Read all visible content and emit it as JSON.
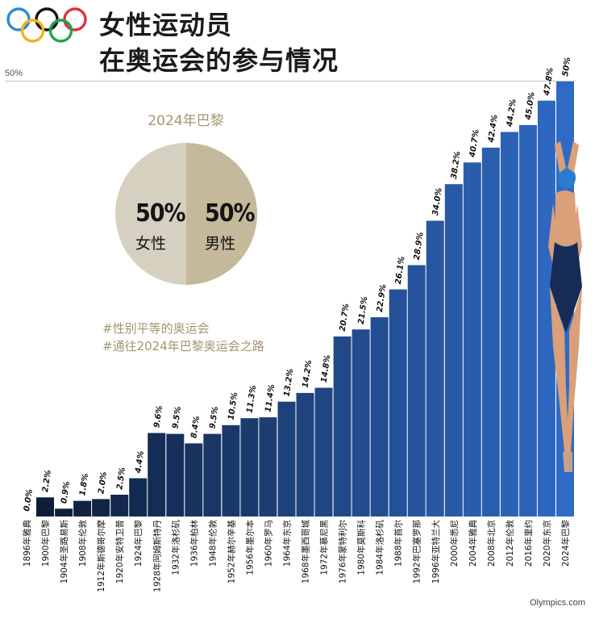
{
  "header": {
    "title_line1": "女性运动员",
    "title_line2": "在奥运会的参与情况",
    "reference_label": "50%"
  },
  "pie": {
    "title": "2024年巴黎",
    "female_pct": "50%",
    "female_label": "女性",
    "male_pct": "50%",
    "male_label": "男性",
    "colors": {
      "female": "#d6d0c0",
      "male": "#c4b99b"
    }
  },
  "hashtags": {
    "tag1": "#性别平等的奥运会",
    "tag2": "#通往2024年巴黎奥运会之路"
  },
  "source": "Olympics.com",
  "colors": {
    "accent_gold": "#a29670",
    "bar_dark": "#0d1a33",
    "bar_light": "#2f6ac4"
  },
  "chart_data": {
    "type": "bar",
    "categories": [
      "1896年雅典",
      "1900年巴黎",
      "1904年圣路易斯",
      "1908年伦敦",
      "1912年斯德哥尔摩",
      "1920年安特卫普",
      "1924年巴黎",
      "1928年阿姆斯特丹",
      "1932年洛杉矶",
      "1936年柏林",
      "1948年伦敦",
      "1952年赫尔辛基",
      "1956年墨尔本",
      "1960年罗马",
      "1964年东京",
      "1968年墨西哥城",
      "1972年慕尼黑",
      "1976年蒙特利尔",
      "1980年莫斯科",
      "1984年洛杉矶",
      "1988年首尔",
      "1992年巴塞罗那",
      "1996年亚特兰大",
      "2000年悉尼",
      "2004年雅典",
      "2008年北京",
      "2012年伦敦",
      "2016年里约",
      "2020年东京",
      "2024年巴黎"
    ],
    "values": [
      0.0,
      2.2,
      0.9,
      1.8,
      2.0,
      2.5,
      4.4,
      9.6,
      9.5,
      8.4,
      9.5,
      10.5,
      11.3,
      11.4,
      13.2,
      14.2,
      14.8,
      20.7,
      21.5,
      22.9,
      26.1,
      28.9,
      34.0,
      38.2,
      40.7,
      42.4,
      44.2,
      45.0,
      47.8,
      50
    ],
    "value_labels": [
      "0.0%",
      "2.2%",
      "0.9%",
      "1.8%",
      "2.0%",
      "2.5%",
      "4.4%",
      "9.6%",
      "9.5%",
      "8.4%",
      "9.5%",
      "10.5%",
      "11.3%",
      "11.4%",
      "13.2%",
      "14.2%",
      "14.8%",
      "20.7%",
      "21.5%",
      "22.9%",
      "26.1%",
      "28.9%",
      "34.0%",
      "38.2%",
      "40.7%",
      "42.4%",
      "44.2%",
      "45.0%",
      "47.8%",
      "50%"
    ],
    "title": "",
    "xlabel": "",
    "ylabel": "",
    "ylim": [
      0,
      50
    ],
    "grid": false
  }
}
